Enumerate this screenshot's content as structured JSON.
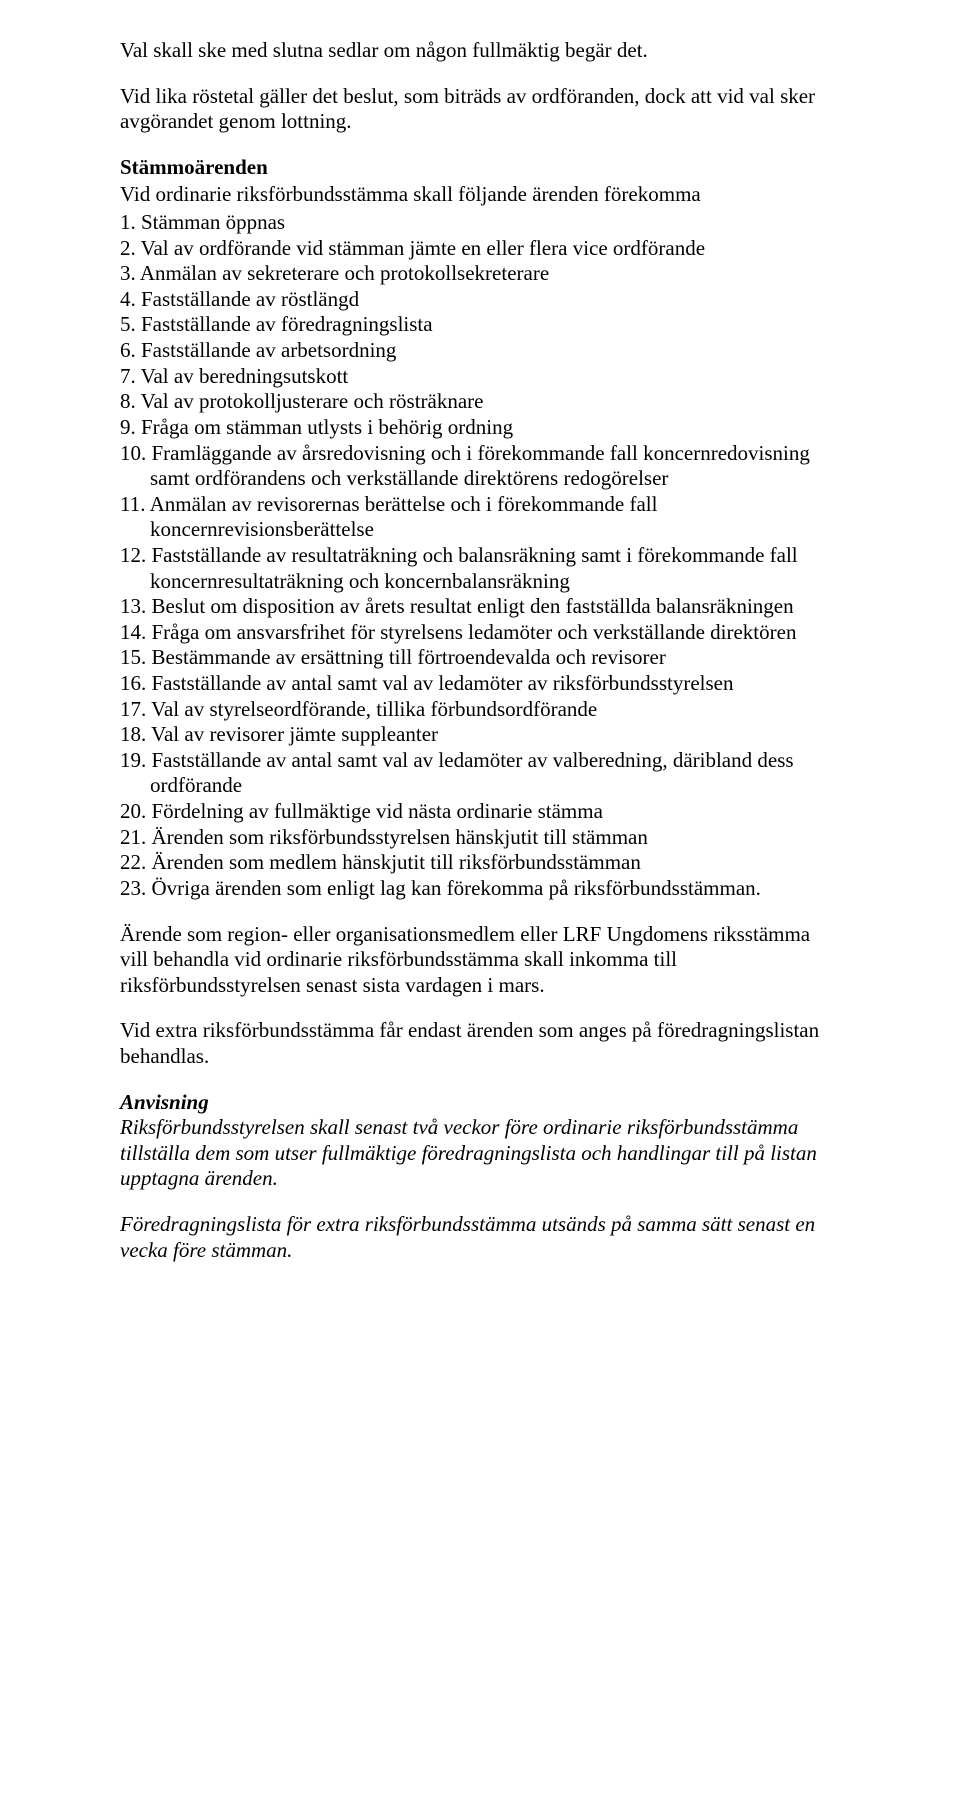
{
  "para1": "Val skall ske med slutna sedlar om någon fullmäktig begär det.",
  "para2": "Vid lika röstetal gäller det beslut, som biträds av ordföranden, dock att vid val sker avgörandet genom lottning.",
  "heading1": "Stämmoärenden",
  "intro": "Vid ordinarie riksförbundsstämma skall följande ärenden förekomma",
  "agenda": [
    "Stämman öppnas",
    "Val av ordförande vid stämman jämte en eller flera vice ordförande",
    "Anmälan av sekreterare och protokollsekreterare",
    "Fastställande av röstlängd",
    "Fastställande av föredragningslista",
    "Fastställande av arbetsordning",
    "Val av beredningsutskott",
    "Val av protokolljusterare och rösträknare",
    "Fråga om stämman utlysts i behörig ordning",
    "Framläggande av årsredovisning och i förekommande fall koncernredovisning samt ordförandens och verkställande direktörens redogörelser",
    "Anmälan av revisorernas berättelse och i förekommande fall koncernrevisionsberättelse",
    "Fastställande av resultaträkning och balansräkning samt i förekommande fall koncernresultaträkning och koncernbalansräkning",
    "Beslut om disposition av årets resultat enligt den fastställda balansräkningen",
    "Fråga om ansvarsfrihet för styrelsens ledamöter och verkställande direktören",
    "Bestämmande av ersättning till förtroendevalda och revisorer",
    "Fastställande av antal samt val av ledamöter av riksförbundsstyrelsen",
    "Val av styrelseordförande, tillika förbundsordförande",
    "Val av revisorer jämte suppleanter",
    "Fastställande av antal samt val av ledamöter av valberedning, däribland dess ordförande",
    "Fördelning av fullmäktige vid nästa ordinarie stämma",
    "Ärenden som riksförbundsstyrelsen hänskjutit till stämman",
    "Ärenden som medlem hänskjutit till riksförbundsstämman",
    "Övriga ärenden som enligt lag kan förekomma på riksförbundsstämman."
  ],
  "para3": "Ärende som region- eller organisationsmedlem eller LRF Ungdomens riksstämma vill behandla vid ordinarie riksförbundsstämma skall inkomma till riksförbundsstyrelsen senast sista vardagen i mars.",
  "para4": "Vid extra riksförbundsstämma får endast ärenden som anges på föredragningslistan behandlas.",
  "subheading": "Anvisning",
  "para5": "Riksförbundsstyrelsen skall senast två veckor före ordinarie riksförbundsstämma tillställa dem som utser fullmäktige föredragningslista och handlingar till på listan upptagna ärenden.",
  "para6": "Föredragningslista för extra riksförbundsstämma utsänds på samma sätt senast en vecka före stämman."
}
